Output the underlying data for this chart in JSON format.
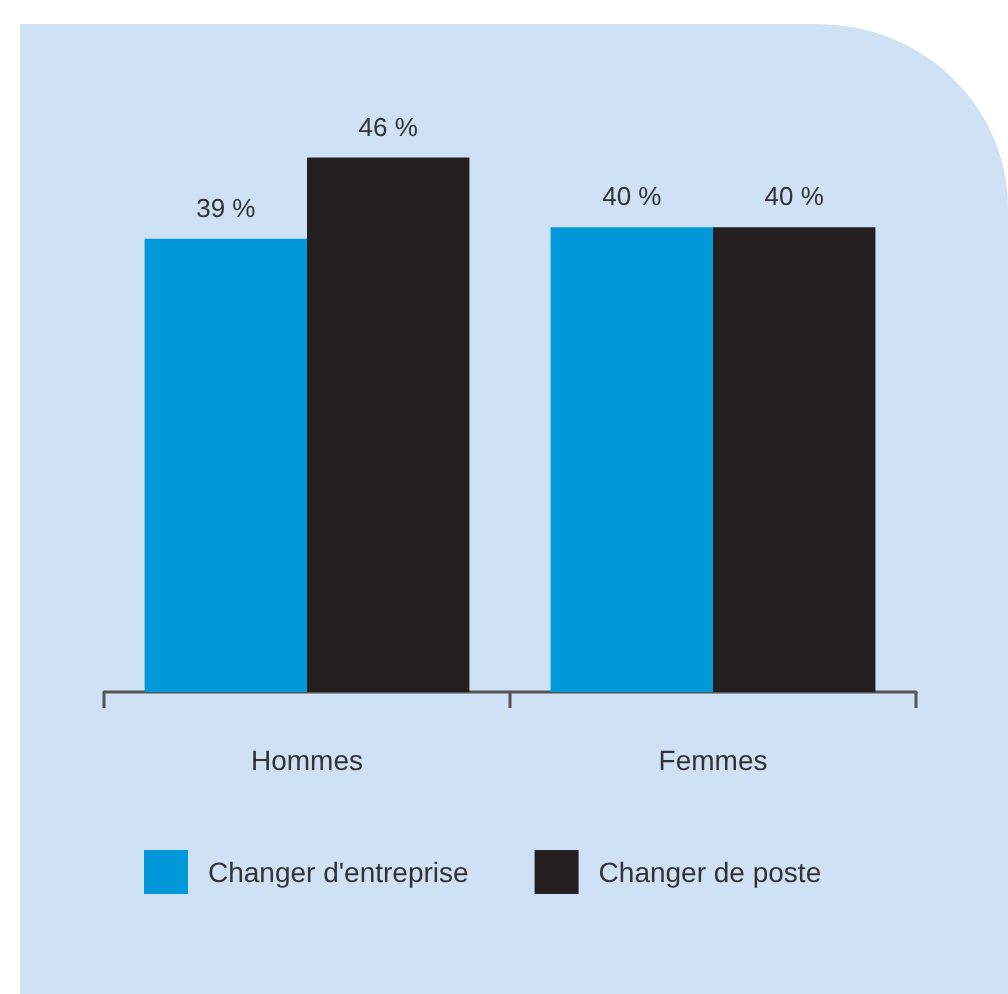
{
  "chart_data": {
    "type": "bar",
    "categories": [
      "Hommes",
      "Femmes"
    ],
    "series": [
      {
        "name": "Changer d'entreprise",
        "color": "#0098da",
        "values": [
          39,
          40
        ],
        "value_labels": [
          "39 %",
          "40 %"
        ]
      },
      {
        "name": "Changer de poste",
        "color": "#231f20",
        "values": [
          46,
          40
        ],
        "value_labels": [
          "46 %",
          "40 %"
        ]
      }
    ],
    "legend": "bottom",
    "grid": false
  }
}
